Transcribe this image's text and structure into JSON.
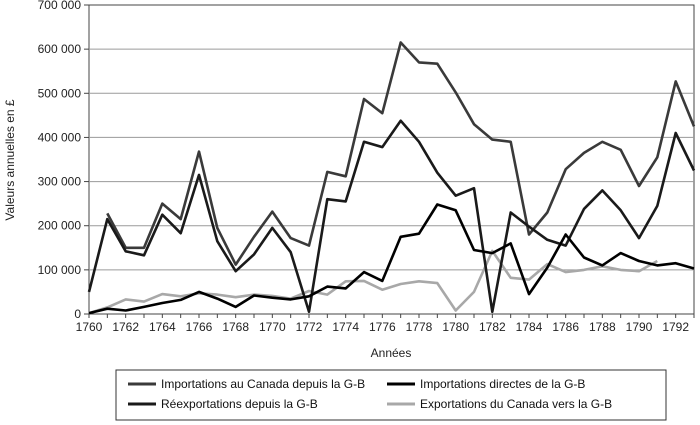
{
  "chart_data": {
    "type": "line",
    "xlabel": "Années",
    "ylabel": "Valeurs annuelles en £",
    "xlim": [
      1760,
      1793
    ],
    "ylim": [
      0,
      700000
    ],
    "x_ticks": [
      "1760",
      "1762",
      "1764",
      "1766",
      "1768",
      "1770",
      "1772",
      "1774",
      "1776",
      "1778",
      "1780",
      "1782",
      "1784",
      "1786",
      "1788",
      "1790",
      "1792"
    ],
    "y_ticks": [
      "0",
      "100 000",
      "200 000",
      "300 000",
      "400 000",
      "500 000",
      "600 000",
      "700 000"
    ],
    "grid": "horizontal",
    "legend_position": "bottom",
    "x": [
      1760,
      1761,
      1762,
      1763,
      1764,
      1765,
      1766,
      1767,
      1768,
      1769,
      1770,
      1771,
      1772,
      1773,
      1774,
      1775,
      1776,
      1777,
      1778,
      1779,
      1780,
      1781,
      1782,
      1783,
      1784,
      1785,
      1786,
      1787,
      1788,
      1789,
      1790,
      1791,
      1792,
      1793
    ],
    "series": [
      {
        "name": "Importations au Canada depuis la G-B",
        "color": "#3a3a3a",
        "values": [
          null,
          228000,
          150000,
          150000,
          250000,
          215000,
          368000,
          195000,
          112000,
          175000,
          232000,
          172000,
          155000,
          322000,
          312000,
          487000,
          455000,
          615000,
          570000,
          567000,
          502000,
          430000,
          395000,
          390000,
          180000,
          230000,
          328000,
          365000,
          390000,
          372000,
          290000,
          355000,
          527000,
          425000
        ]
      },
      {
        "name": "Réexportations depuis la G-B",
        "color": "#1a1a1a",
        "values": [
          50000,
          215000,
          142000,
          133000,
          225000,
          183000,
          315000,
          165000,
          97000,
          135000,
          195000,
          140000,
          5000,
          260000,
          255000,
          390000,
          378000,
          438000,
          390000,
          320000,
          268000,
          285000,
          5000,
          230000,
          198000,
          168000,
          155000,
          238000,
          280000,
          235000,
          172000,
          245000,
          410000,
          325000
        ]
      },
      {
        "name": "Importations directes de la G-B",
        "color": "#000000",
        "values": [
          2000,
          12000,
          8000,
          16000,
          25000,
          32000,
          50000,
          35000,
          16000,
          42000,
          37000,
          33000,
          40000,
          62000,
          58000,
          95000,
          75000,
          175000,
          182000,
          248000,
          235000,
          145000,
          138000,
          160000,
          45000,
          105000,
          180000,
          128000,
          110000,
          138000,
          120000,
          110000,
          115000,
          103000
        ]
      },
      {
        "name": "Exportations du Canada vers la G-B",
        "color": "#a8a8a8",
        "values": [
          2000,
          15000,
          33000,
          28000,
          45000,
          40000,
          47000,
          44000,
          38000,
          44000,
          41000,
          35000,
          52000,
          44000,
          74000,
          75000,
          55000,
          68000,
          74000,
          70000,
          8000,
          50000,
          143000,
          82000,
          78000,
          113000,
          95000,
          100000,
          108000,
          100000,
          97000,
          120000,
          null,
          null
        ]
      }
    ]
  }
}
